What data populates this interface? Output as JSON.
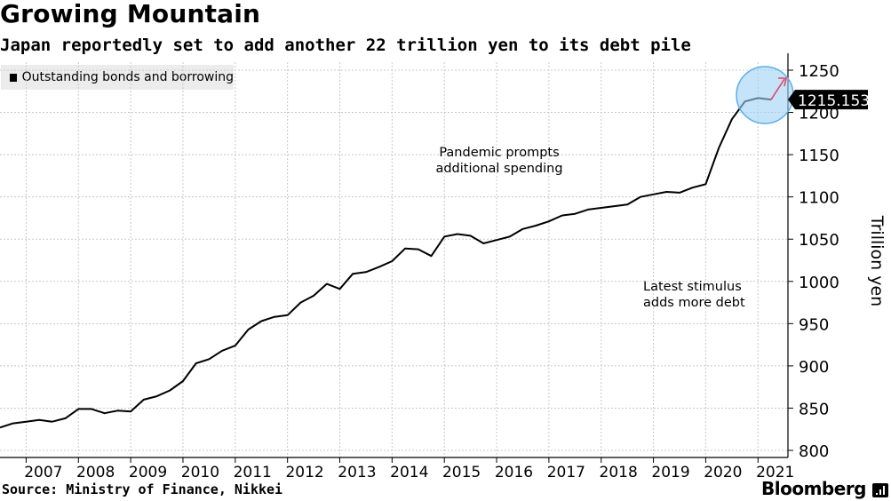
{
  "chart_data": {
    "type": "line",
    "title": "Growing Mountain",
    "subtitle": "Japan reportedly set to add another 22 trillion yen to its debt pile",
    "ylabel": "Trillion yen",
    "xlabel": "",
    "legend": "top-left",
    "grid": true,
    "ylim": [
      790,
      1260
    ],
    "xlim": [
      2006.5,
      2021.85
    ],
    "y_ticks": [
      800,
      850,
      900,
      950,
      1000,
      1050,
      1100,
      1150,
      1200,
      1250
    ],
    "x_ticks": [
      "2007",
      "2008",
      "2009",
      "2010",
      "2011",
      "2012",
      "2013",
      "2014",
      "2015",
      "2016",
      "2017",
      "2018",
      "2019",
      "2020",
      "2021"
    ],
    "series": [
      {
        "name": "Outstanding bonds and borrowing",
        "color": "#000000",
        "x": [
          2006.5,
          2006.75,
          2007.0,
          2007.25,
          2007.5,
          2007.75,
          2008.0,
          2008.25,
          2008.5,
          2008.75,
          2009.0,
          2009.25,
          2009.5,
          2009.75,
          2010.0,
          2010.25,
          2010.5,
          2010.75,
          2011.0,
          2011.25,
          2011.5,
          2011.75,
          2012.0,
          2012.25,
          2012.5,
          2012.75,
          2013.0,
          2013.25,
          2013.5,
          2013.75,
          2014.0,
          2014.25,
          2014.5,
          2014.75,
          2015.0,
          2015.25,
          2015.5,
          2015.75,
          2016.0,
          2016.25,
          2016.5,
          2016.75,
          2017.0,
          2017.25,
          2017.5,
          2017.75,
          2018.0,
          2018.25,
          2018.5,
          2018.75,
          2019.0,
          2019.25,
          2019.5,
          2019.75,
          2020.0,
          2020.25,
          2020.5,
          2020.75,
          2021.0,
          2021.25
        ],
        "values": [
          827,
          832,
          834,
          836,
          834,
          838,
          849,
          849,
          844,
          847,
          846,
          860,
          864,
          871,
          882,
          903,
          908,
          918,
          924,
          943,
          953,
          958,
          960,
          975,
          983,
          997,
          991,
          1009,
          1011,
          1017,
          1024,
          1039,
          1038,
          1030,
          1053,
          1056,
          1054,
          1045,
          1049,
          1053,
          1062,
          1066,
          1071,
          1078,
          1080,
          1085,
          1087,
          1089,
          1091,
          1100,
          1103,
          1106,
          1105,
          1111,
          1115,
          1158,
          1192,
          1213,
          1217,
          1215.153
        ]
      }
    ],
    "last_value_label": "1215.153",
    "annotations": [
      {
        "text_lines": [
          "Pandemic prompts",
          "additional spending"
        ],
        "anchor": "middle"
      },
      {
        "text_lines": [
          "Latest stimulus",
          "adds more debt"
        ],
        "anchor": "start"
      }
    ],
    "highlight_color": "#9fd0f5",
    "arrow_color": "#e0456a"
  },
  "source_text": "Source: Ministry of Finance, Nikkei",
  "brand_text": "Bloomberg"
}
